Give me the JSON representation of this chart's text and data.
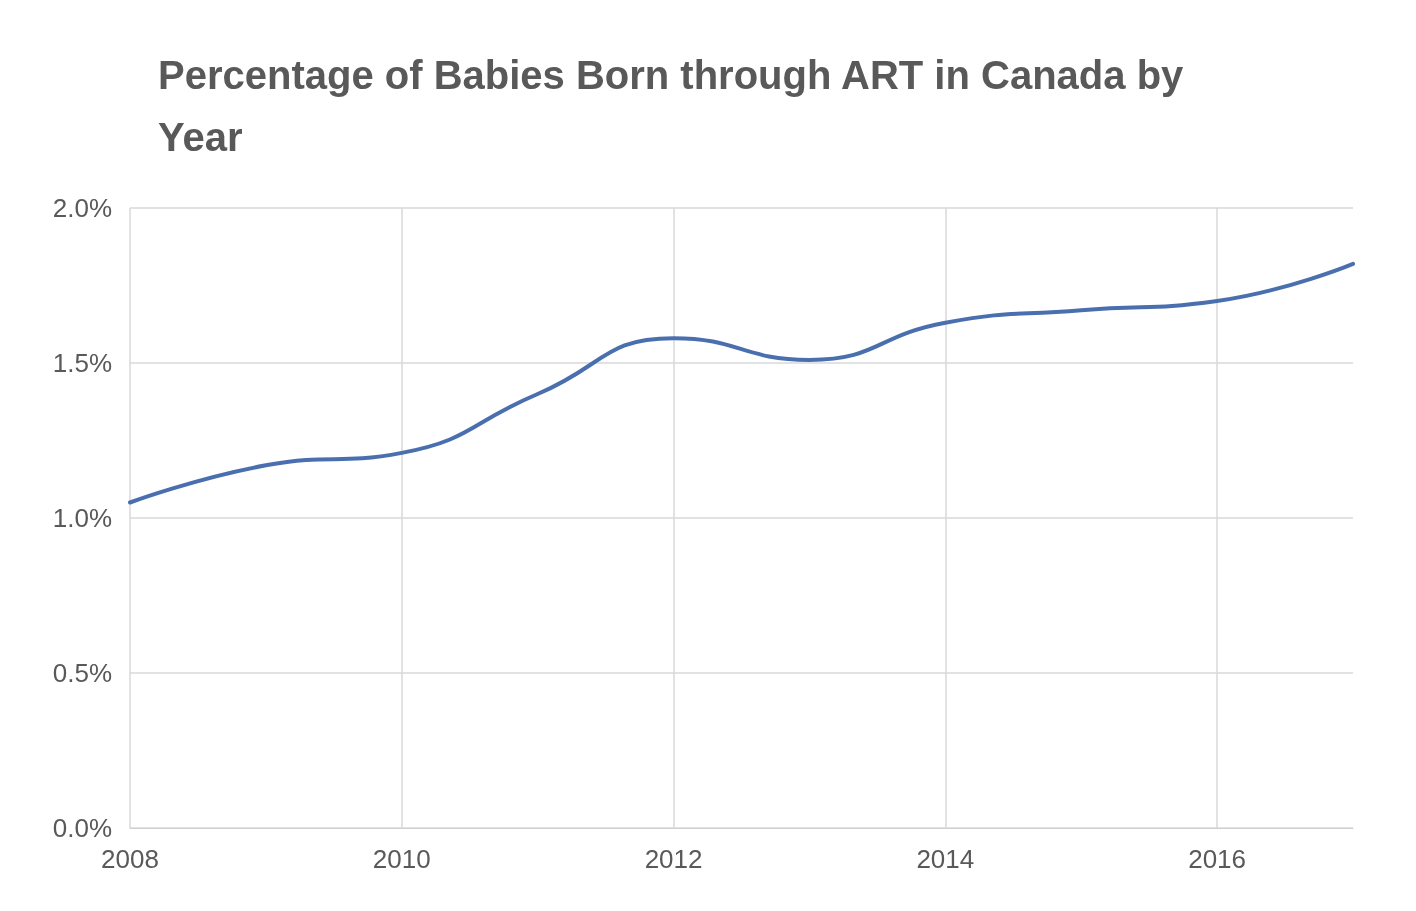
{
  "chart_data": {
    "type": "line",
    "title": "Percentage of Babies Born through ART in Canada by Year",
    "x": [
      2008,
      2009,
      2010,
      2011,
      2012,
      2013,
      2014,
      2015,
      2016,
      2017
    ],
    "series": [
      {
        "color": "#4a6fae",
        "values": [
          1.05,
          1.17,
          1.21,
          1.4,
          1.58,
          1.51,
          1.63,
          1.67,
          1.7,
          1.82
        ]
      }
    ],
    "xlim": [
      2008,
      2017
    ],
    "xticks": [
      2008,
      2010,
      2012,
      2014,
      2016
    ],
    "ylim": [
      0,
      2
    ],
    "yticks": [
      {
        "value": 0,
        "label": "0.0%"
      },
      {
        "value": 0.5,
        "label": "0.5%"
      },
      {
        "value": 1,
        "label": "1.0%"
      },
      {
        "value": 1.5,
        "label": "1.5%"
      },
      {
        "value": 2,
        "label": "2.0%"
      }
    ],
    "grid": true,
    "marker": "none",
    "line_style": "solid"
  }
}
